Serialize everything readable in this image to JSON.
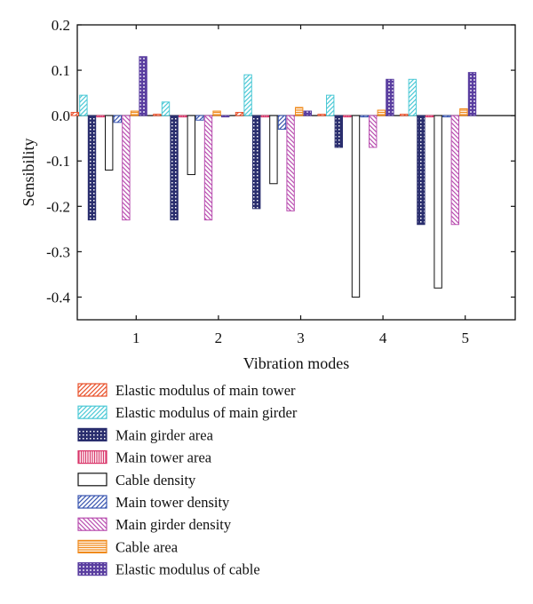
{
  "chart_data": {
    "type": "bar",
    "xlabel": "Vibration modes",
    "ylabel": "Sensibility",
    "categories": [
      "1",
      "2",
      "3",
      "4",
      "5"
    ],
    "ylim": [
      -0.45,
      0.2
    ],
    "yticks": [
      0.2,
      0.1,
      0.0,
      -0.1,
      -0.2,
      -0.3,
      -0.4
    ],
    "ytick_labels": [
      "0.2",
      "0.1",
      "0.0",
      "-0.1",
      "-0.2",
      "-0.3",
      "-0.4"
    ],
    "grid": false,
    "legend_position": "below plot",
    "series": [
      {
        "name": "Elastic modulus of main tower",
        "color": "#e8502a",
        "pattern": "diagonal-right",
        "values": [
          0.007,
          0.003,
          0.007,
          0.002,
          0.002
        ]
      },
      {
        "name": "Elastic modulus of main girder",
        "color": "#4cc9d6",
        "pattern": "diagonal-right",
        "values": [
          0.045,
          0.03,
          0.09,
          0.045,
          0.08
        ]
      },
      {
        "name": "Main girder area",
        "color": "#2a2e6e",
        "pattern": "dots",
        "values": [
          -0.23,
          -0.23,
          -0.205,
          -0.07,
          -0.24
        ]
      },
      {
        "name": "Main tower area",
        "color": "#d9366a",
        "pattern": "vertical",
        "values": [
          -0.002,
          -0.003,
          -0.003,
          -0.001,
          -0.002
        ]
      },
      {
        "name": "Cable density",
        "color": "#111111",
        "pattern": "none",
        "values": [
          -0.12,
          -0.13,
          -0.15,
          -0.4,
          -0.38
        ]
      },
      {
        "name": "Main tower density",
        "color": "#3a56b0",
        "pattern": "diagonal-right",
        "values": [
          -0.015,
          -0.01,
          -0.03,
          -0.002,
          -0.002
        ]
      },
      {
        "name": "Main girder density",
        "color": "#b94fb0",
        "pattern": "diagonal-left",
        "values": [
          -0.23,
          -0.23,
          -0.21,
          -0.07,
          -0.24
        ]
      },
      {
        "name": "Cable area",
        "color": "#f08a1c",
        "pattern": "horizontal",
        "values": [
          0.01,
          0.01,
          0.018,
          0.012,
          0.015
        ]
      },
      {
        "name": "Elastic modulus of cable",
        "color": "#5a3ea0",
        "pattern": "grid",
        "values": [
          0.13,
          -0.002,
          0.01,
          0.08,
          0.095
        ]
      }
    ]
  }
}
